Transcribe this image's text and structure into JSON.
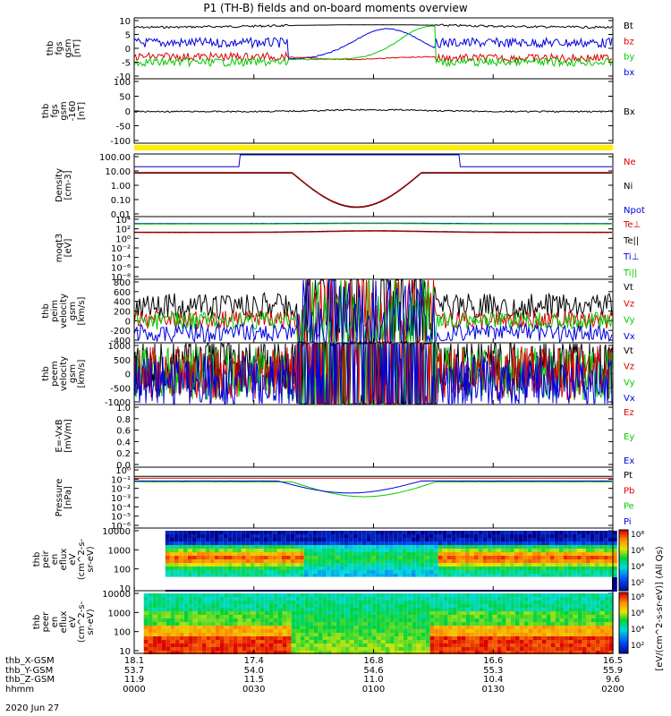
{
  "title": "P1 (TH-B) fields and on-board moments overview",
  "date": "2020 Jun 27",
  "panels": [
    {
      "id": "fgs_b",
      "ylabel": [
        "thb",
        "fgs",
        "gsm",
        "[nT]"
      ],
      "ticks": [
        "10",
        "5",
        "0",
        "-5",
        "-10"
      ],
      "legend": [
        {
          "t": "Bt",
          "c": "#000000"
        },
        {
          "t": "bz",
          "c": "#dd0000"
        },
        {
          "t": "by",
          "c": "#00cc00"
        },
        {
          "t": "bx",
          "c": "#0000dd"
        }
      ]
    },
    {
      "id": "fgs_bx",
      "ylabel": [
        "thb",
        "fgs",
        "gsm",
        "-160",
        "[nT]"
      ],
      "ticks": [
        "100",
        "50",
        "0",
        "-50",
        "-100"
      ],
      "legend": [
        {
          "t": "Bx",
          "c": "#000000"
        }
      ]
    },
    {
      "id": "density",
      "ylabel": [
        "Density",
        "[cm-3]"
      ],
      "ticks": [
        "100.00",
        "10.00",
        "1.00",
        "0.10",
        "0.01"
      ],
      "legend": [
        {
          "t": "Ne",
          "c": "#dd0000"
        },
        {
          "t": "Ni",
          "c": "#000000"
        },
        {
          "t": "Npot",
          "c": "#0000dd"
        }
      ]
    },
    {
      "id": "temp",
      "ylabel": [
        "moqt3",
        "[eV]"
      ],
      "ticks": [
        "10⁴",
        "10²",
        "10⁰",
        "10⁻²",
        "10⁻⁴",
        "10⁻⁶",
        "10⁻⁸"
      ],
      "legend": [
        {
          "t": "Te⊥",
          "c": "#dd0000"
        },
        {
          "t": "Te||",
          "c": "#000000"
        },
        {
          "t": "Ti⊥",
          "c": "#0000dd"
        },
        {
          "t": "Ti||",
          "c": "#00cc00"
        }
      ]
    },
    {
      "id": "vel_i",
      "ylabel": [
        "thb",
        "peim",
        "velocity",
        "gsm",
        "[km/s]"
      ],
      "ticks": [
        "800",
        "600",
        "400",
        "200",
        "0",
        "-200",
        "-400"
      ],
      "legend": [
        {
          "t": "Vt",
          "c": "#000000"
        },
        {
          "t": "Vz",
          "c": "#dd0000"
        },
        {
          "t": "Vy",
          "c": "#00cc00"
        },
        {
          "t": "Vx",
          "c": "#0000dd"
        }
      ]
    },
    {
      "id": "vel_e",
      "ylabel": [
        "thb",
        "peem",
        "velocity",
        "gsm",
        "[km/s]"
      ],
      "ticks": [
        "1000",
        "500",
        "0",
        "-500",
        "-1000"
      ],
      "legend": [
        {
          "t": "Vt",
          "c": "#000000"
        },
        {
          "t": "Vz",
          "c": "#dd0000"
        },
        {
          "t": "Vy",
          "c": "#00cc00"
        },
        {
          "t": "Vx",
          "c": "#0000dd"
        }
      ]
    },
    {
      "id": "efield",
      "ylabel": [
        "E=-VxB",
        "[mV/m]"
      ],
      "ticks": [
        "1.0",
        "0.8",
        "0.6",
        "0.4",
        "0.2",
        "0.0"
      ],
      "legend": [
        {
          "t": "Ez",
          "c": "#dd0000"
        },
        {
          "t": "Ey",
          "c": "#00cc00"
        },
        {
          "t": "Ex",
          "c": "#0000dd"
        }
      ]
    },
    {
      "id": "pressure",
      "ylabel": [
        "Pressure",
        "[nPa]"
      ],
      "ticks": [
        "10⁰",
        "10⁻¹",
        "10⁻²",
        "10⁻³",
        "10⁻⁴",
        "10⁻⁵",
        "10⁻⁶"
      ],
      "legend": [
        {
          "t": "Pt",
          "c": "#000000"
        },
        {
          "t": "Pb",
          "c": "#dd0000"
        },
        {
          "t": "Pe",
          "c": "#00cc00"
        },
        {
          "t": "Pi",
          "c": "#0000dd"
        }
      ]
    },
    {
      "id": "spec_i",
      "ylabel": [
        "thb",
        "peir",
        "en",
        "eflux",
        "eV",
        "(cm^2-s-",
        "sr-eV)"
      ],
      "ticks": [
        "10000",
        "1000",
        "100",
        "10"
      ],
      "legend": []
    },
    {
      "id": "spec_e",
      "ylabel": [
        "thb",
        "peer",
        "en",
        "eflux",
        "eV",
        "(cm^2-s-",
        "sr-eV)"
      ],
      "ticks": [
        "10000",
        "1000",
        "100",
        "10"
      ],
      "legend": []
    }
  ],
  "colorbar": {
    "label": "[eV/(cm^2-s-sr-eV)] (All Qs)",
    "top_ticks": [
      "10⁸",
      "10⁶",
      "10⁴",
      "10²"
    ],
    "bottom_ticks": [
      "10⁸",
      "10⁶",
      "10⁴",
      "10²"
    ]
  },
  "ephemeris": {
    "labels": [
      "thb_X-GSM",
      "thb_Y-GSM",
      "thb_Z-GSM",
      "hhmm"
    ],
    "columns": [
      [
        "18.1",
        "53.7",
        "11.9",
        "0000"
      ],
      [
        "17.4",
        "54.0",
        "11.5",
        "0030"
      ],
      [
        "16.8",
        "54.6",
        "11.0",
        "0100"
      ],
      [
        "16.6",
        "55.3",
        "10.4",
        "0130"
      ],
      [
        "16.5",
        "55.9",
        "9.6",
        "0200"
      ]
    ]
  },
  "chart_data": {
    "type": "line",
    "title": "P1 (TH-B) fields and on-board moments overview",
    "x": [
      "0000",
      "0030",
      "0100",
      "0130",
      "0200"
    ],
    "xlabel": "hhmm",
    "series": [
      {
        "name": "Bt",
        "values": [
          7,
          8,
          8,
          8,
          7
        ]
      },
      {
        "name": "bz",
        "values": [
          -3,
          -4,
          -2,
          -3,
          -3
        ]
      },
      {
        "name": "by",
        "values": [
          -5,
          -4,
          2,
          -4,
          -5
        ]
      },
      {
        "name": "bx",
        "values": [
          2,
          3,
          5,
          2,
          2
        ]
      },
      {
        "name": "Bx",
        "values": [
          -2,
          -3,
          0,
          -2,
          -2
        ]
      },
      {
        "name": "Ne",
        "values": [
          6,
          8,
          0.03,
          8,
          7
        ]
      },
      {
        "name": "Npot",
        "values": [
          20,
          20,
          100,
          20,
          20
        ]
      },
      {
        "name": "Vt",
        "values": [
          300,
          320,
          100,
          300,
          300
        ]
      },
      {
        "name": "Pt",
        "values": [
          0.2,
          0.2,
          0.2,
          0.2,
          0.2
        ]
      }
    ]
  }
}
